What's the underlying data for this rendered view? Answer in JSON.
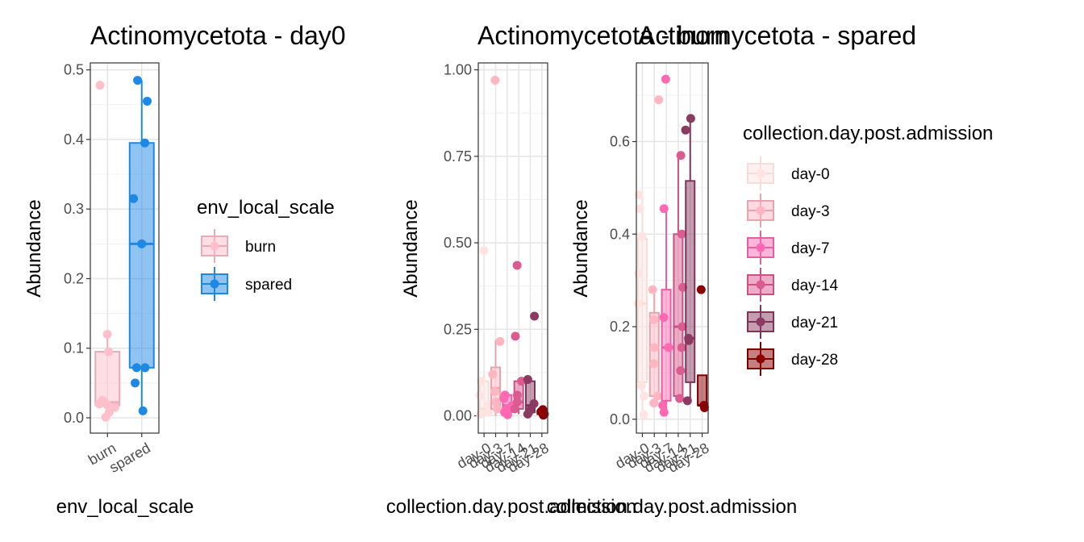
{
  "chart_data": [
    {
      "type": "boxplot",
      "title": "Actinomycetota - day0",
      "xlabel": "env_local_scale",
      "ylabel": "Abundance",
      "categories": [
        "burn",
        "spared"
      ],
      "yticks": [
        "0.0",
        "0.1",
        "0.2",
        "0.3",
        "0.4",
        "0.5"
      ],
      "ylim": [
        -0.022,
        0.51
      ],
      "grid": true,
      "legend": {
        "title": "env_local_scale",
        "entries": [
          {
            "label": "burn",
            "color": "#FFC0CB"
          },
          {
            "label": "spared",
            "color": "#1E88E5"
          }
        ]
      },
      "series": [
        {
          "name": "burn",
          "color": "#FFC0CB",
          "box": {
            "q1": 0.018,
            "median": 0.022,
            "q3": 0.095,
            "whisker_low": 0.0,
            "whisker_high": 0.12
          },
          "points": [
            0.12,
            0.095,
            0.478,
            0.025,
            0.02,
            0.018,
            0.02,
            0.015,
            0.008,
            0.001
          ]
        },
        {
          "name": "spared",
          "color": "#1E88E5",
          "box": {
            "q1": 0.072,
            "median": 0.25,
            "q3": 0.395,
            "whisker_low": 0.01,
            "whisker_high": 0.485
          },
          "points": [
            0.485,
            0.455,
            0.395,
            0.315,
            0.25,
            0.072,
            0.072,
            0.05,
            0.01
          ]
        }
      ]
    },
    {
      "type": "boxplot",
      "title": "Actinomycetota - burn",
      "xlabel": "collection.day.post.admission",
      "ylabel": "Abundance",
      "categories": [
        "day-0",
        "day-3",
        "day-7",
        "day-14",
        "day-21",
        "day-28"
      ],
      "yticks": [
        "0.00",
        "0.25",
        "0.50",
        "0.75",
        "1.00"
      ],
      "ylim": [
        -0.05,
        1.02
      ],
      "grid": true,
      "series": [
        {
          "name": "day-0",
          "color": "#FFE4E1",
          "box": {
            "q1": 0.005,
            "median": 0.02,
            "q3": 0.1,
            "whisker_low": 0.0,
            "whisker_high": 0.12
          },
          "points": [
            0.478,
            0.1,
            0.06,
            0.03,
            0.01,
            0.005
          ]
        },
        {
          "name": "day-3",
          "color": "#FFB6C1",
          "box": {
            "q1": 0.02,
            "median": 0.08,
            "q3": 0.14,
            "whisker_low": 0.0,
            "whisker_high": 0.22
          },
          "points": [
            0.97,
            0.215,
            0.12,
            0.07,
            0.04,
            0.02
          ]
        },
        {
          "name": "day-7",
          "color": "#FF69B4",
          "box": {
            "q1": 0.01,
            "median": 0.03,
            "q3": 0.06,
            "whisker_low": 0.0,
            "whisker_high": 0.07
          },
          "points": [
            0.06,
            0.05,
            0.03,
            0.02,
            0.01,
            0.003
          ]
        },
        {
          "name": "day-14",
          "color": "#DB5C91",
          "box": {
            "q1": 0.02,
            "median": 0.04,
            "q3": 0.1,
            "whisker_low": 0.005,
            "whisker_high": 0.1
          },
          "points": [
            0.435,
            0.23,
            0.1,
            0.06,
            0.04,
            0.02
          ]
        },
        {
          "name": "day-21",
          "color": "#8B3A62",
          "box": {
            "q1": 0.01,
            "median": 0.03,
            "q3": 0.1,
            "whisker_low": 0.0,
            "whisker_high": 0.1
          },
          "points": [
            0.288,
            0.105,
            0.035,
            0.015,
            0.005
          ]
        },
        {
          "name": "day-28",
          "color": "#8B0000",
          "box": {
            "q1": 0.005,
            "median": 0.01,
            "q3": 0.015,
            "whisker_low": 0.0,
            "whisker_high": 0.018
          },
          "points": [
            0.018,
            0.012,
            0.005,
            0.002
          ]
        }
      ]
    },
    {
      "type": "boxplot",
      "title": "Actinomycetota - spared",
      "xlabel": "collection.day.post.admission",
      "ylabel": "Abundance",
      "categories": [
        "day-0",
        "day-3",
        "day-7",
        "day-14",
        "day-21",
        "day-28"
      ],
      "yticks": [
        "0.0",
        "0.2",
        "0.4",
        "0.6"
      ],
      "ylim": [
        -0.03,
        0.77
      ],
      "grid": true,
      "legend": {
        "title": "collection.day.post.admission",
        "entries": [
          {
            "label": "day-0",
            "color": "#FFE4E1"
          },
          {
            "label": "day-3",
            "color": "#FFB6C1"
          },
          {
            "label": "day-7",
            "color": "#FF69B4"
          },
          {
            "label": "day-14",
            "color": "#DB5C91"
          },
          {
            "label": "day-21",
            "color": "#8B3A62"
          },
          {
            "label": "day-28",
            "color": "#8B0000"
          }
        ]
      },
      "series": [
        {
          "name": "day-0",
          "color": "#FFE4E1",
          "box": {
            "q1": 0.08,
            "median": 0.25,
            "q3": 0.39,
            "whisker_low": 0.01,
            "whisker_high": 0.485
          },
          "points": [
            0.485,
            0.455,
            0.395,
            0.315,
            0.25,
            0.072,
            0.05,
            0.01
          ]
        },
        {
          "name": "day-3",
          "color": "#FFB6C1",
          "box": {
            "q1": 0.05,
            "median": 0.155,
            "q3": 0.23,
            "whisker_low": 0.035,
            "whisker_high": 0.28
          },
          "points": [
            0.69,
            0.28,
            0.215,
            0.155,
            0.12,
            0.05,
            0.035
          ]
        },
        {
          "name": "day-7",
          "color": "#FF69B4",
          "box": {
            "q1": 0.04,
            "median": 0.155,
            "q3": 0.28,
            "whisker_low": 0.01,
            "whisker_high": 0.455
          },
          "points": [
            0.735,
            0.455,
            0.22,
            0.155,
            0.03,
            0.015
          ]
        },
        {
          "name": "day-14",
          "color": "#DB5C91",
          "box": {
            "q1": 0.05,
            "median": 0.2,
            "q3": 0.4,
            "whisker_low": 0.04,
            "whisker_high": 0.57
          },
          "points": [
            0.57,
            0.4,
            0.285,
            0.2,
            0.155,
            0.105,
            0.045
          ]
        },
        {
          "name": "day-21",
          "color": "#8B3A62",
          "box": {
            "q1": 0.08,
            "median": 0.175,
            "q3": 0.515,
            "whisker_low": 0.04,
            "whisker_high": 0.65
          },
          "points": [
            0.65,
            0.625,
            0.175,
            0.17,
            0.04
          ]
        },
        {
          "name": "day-28",
          "color": "#8B0000",
          "box": {
            "q1": 0.03,
            "median": 0.03,
            "q3": 0.095,
            "whisker_low": 0.025,
            "whisker_high": 0.095
          },
          "points": [
            0.28,
            0.03,
            0.025
          ]
        }
      ]
    }
  ]
}
